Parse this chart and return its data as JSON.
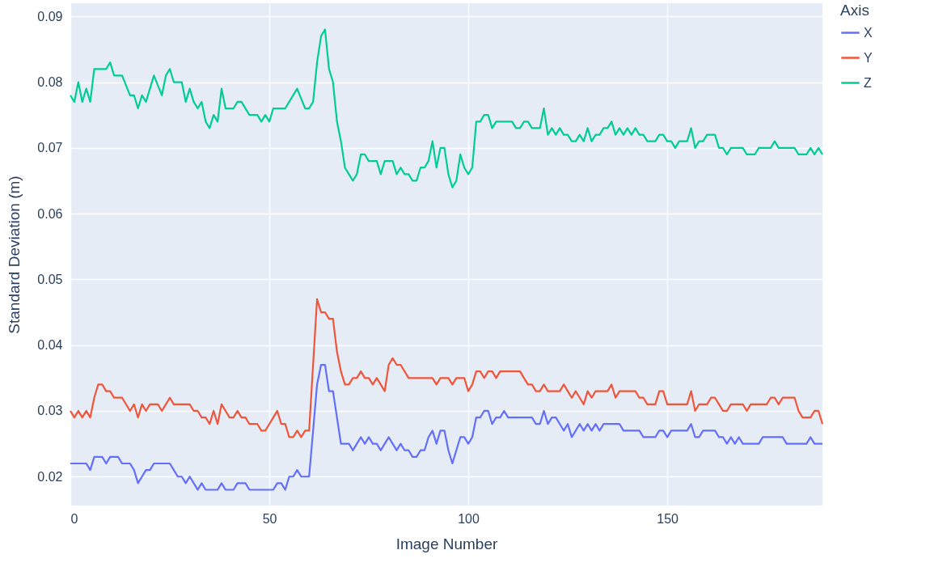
{
  "chart_data": {
    "type": "line",
    "xlabel": "Image Number",
    "ylabel": "Standard Deviation (m)",
    "legend_title": "Axis",
    "legend": "top right",
    "grid": true,
    "xlim": [
      0,
      189
    ],
    "xticks": [
      0,
      50,
      100,
      150
    ],
    "ylim": [
      0.0156,
      0.092
    ],
    "yticks": [
      0.02,
      0.03,
      0.04,
      0.05,
      0.06,
      0.07,
      0.08,
      0.09
    ],
    "series": [
      {
        "name": "X",
        "color": "#636efa",
        "x": [
          0,
          4,
          5,
          6,
          8,
          9,
          10,
          12,
          13,
          15,
          16,
          17,
          18,
          19,
          20,
          21,
          25,
          26,
          27,
          28,
          29,
          30,
          31,
          32,
          33,
          34,
          37,
          38,
          39,
          41,
          42,
          44,
          45,
          51,
          52,
          53,
          54,
          55,
          56,
          57,
          58,
          60,
          62,
          63,
          64,
          65,
          66,
          67,
          68,
          70,
          71,
          72,
          73,
          74,
          75,
          76,
          77,
          78,
          79,
          80,
          81,
          82,
          83,
          84,
          85,
          86,
          87,
          88,
          89,
          90,
          91,
          92,
          93,
          94,
          95,
          96,
          97,
          98,
          99,
          100,
          101,
          102,
          103,
          104,
          105,
          106,
          107,
          108,
          109,
          110,
          116,
          117,
          118,
          119,
          120,
          121,
          122,
          123,
          124,
          125,
          126,
          127,
          128,
          129,
          130,
          131,
          132,
          133,
          134,
          138,
          139,
          143,
          144,
          147,
          148,
          149,
          150,
          151,
          155,
          156,
          157,
          158,
          159,
          162,
          163,
          164,
          165,
          166,
          167,
          168,
          169,
          173,
          174,
          179,
          180,
          185,
          186,
          187,
          189
        ],
        "values": [
          0.022,
          0.022,
          0.021,
          0.023,
          0.023,
          0.022,
          0.023,
          0.023,
          0.022,
          0.022,
          0.021,
          0.019,
          0.02,
          0.021,
          0.021,
          0.022,
          0.022,
          0.021,
          0.02,
          0.02,
          0.019,
          0.02,
          0.019,
          0.018,
          0.019,
          0.018,
          0.018,
          0.019,
          0.018,
          0.018,
          0.019,
          0.019,
          0.018,
          0.018,
          0.019,
          0.019,
          0.018,
          0.02,
          0.02,
          0.021,
          0.02,
          0.02,
          0.034,
          0.037,
          0.037,
          0.033,
          0.033,
          0.029,
          0.025,
          0.025,
          0.024,
          0.025,
          0.026,
          0.025,
          0.026,
          0.025,
          0.025,
          0.024,
          0.025,
          0.026,
          0.025,
          0.024,
          0.025,
          0.024,
          0.024,
          0.023,
          0.023,
          0.024,
          0.024,
          0.026,
          0.027,
          0.025,
          0.027,
          0.027,
          0.024,
          0.022,
          0.024,
          0.026,
          0.026,
          0.025,
          0.026,
          0.029,
          0.029,
          0.03,
          0.03,
          0.028,
          0.029,
          0.029,
          0.03,
          0.029,
          0.029,
          0.028,
          0.028,
          0.03,
          0.028,
          0.029,
          0.029,
          0.028,
          0.027,
          0.028,
          0.026,
          0.027,
          0.028,
          0.027,
          0.028,
          0.027,
          0.028,
          0.027,
          0.028,
          0.028,
          0.027,
          0.027,
          0.026,
          0.026,
          0.027,
          0.027,
          0.026,
          0.027,
          0.027,
          0.028,
          0.026,
          0.026,
          0.027,
          0.027,
          0.026,
          0.026,
          0.025,
          0.026,
          0.025,
          0.026,
          0.025,
          0.025,
          0.026,
          0.026,
          0.025,
          0.025,
          0.026,
          0.025,
          0.025
        ]
      },
      {
        "name": "Y",
        "color": "#ef553b",
        "x": [
          0,
          1,
          2,
          3,
          4,
          5,
          6,
          7,
          8,
          9,
          10,
          11,
          13,
          15,
          16,
          17,
          18,
          19,
          20,
          22,
          23,
          24,
          25,
          26,
          30,
          31,
          32,
          33,
          34,
          35,
          36,
          37,
          38,
          39,
          40,
          41,
          42,
          43,
          44,
          45,
          47,
          48,
          49,
          50,
          51,
          52,
          53,
          54,
          55,
          56,
          57,
          58,
          59,
          60,
          62,
          63,
          64,
          65,
          66,
          67,
          68,
          69,
          70,
          71,
          72,
          73,
          74,
          75,
          76,
          77,
          78,
          79,
          80,
          81,
          82,
          83,
          85,
          91,
          92,
          93,
          95,
          96,
          97,
          99,
          100,
          101,
          102,
          103,
          104,
          105,
          106,
          107,
          108,
          113,
          114,
          115,
          116,
          117,
          118,
          119,
          120,
          123,
          124,
          125,
          126,
          127,
          128,
          129,
          130,
          131,
          132,
          135,
          136,
          137,
          138,
          142,
          143,
          144,
          145,
          147,
          148,
          149,
          150,
          155,
          156,
          157,
          158,
          160,
          161,
          162,
          163,
          164,
          165,
          166,
          169,
          170,
          171,
          175,
          176,
          177,
          178,
          179,
          182,
          183,
          184,
          186,
          187,
          188,
          189
        ],
        "values": [
          0.03,
          0.029,
          0.03,
          0.029,
          0.03,
          0.029,
          0.032,
          0.034,
          0.034,
          0.033,
          0.033,
          0.032,
          0.032,
          0.03,
          0.031,
          0.029,
          0.031,
          0.03,
          0.031,
          0.031,
          0.03,
          0.031,
          0.032,
          0.031,
          0.031,
          0.03,
          0.03,
          0.029,
          0.029,
          0.028,
          0.03,
          0.028,
          0.031,
          0.03,
          0.029,
          0.029,
          0.03,
          0.029,
          0.029,
          0.028,
          0.028,
          0.027,
          0.027,
          0.028,
          0.029,
          0.03,
          0.028,
          0.028,
          0.026,
          0.026,
          0.027,
          0.026,
          0.027,
          0.027,
          0.047,
          0.045,
          0.045,
          0.044,
          0.044,
          0.039,
          0.036,
          0.034,
          0.034,
          0.035,
          0.035,
          0.036,
          0.035,
          0.035,
          0.034,
          0.035,
          0.034,
          0.033,
          0.037,
          0.038,
          0.037,
          0.037,
          0.035,
          0.035,
          0.034,
          0.035,
          0.035,
          0.034,
          0.035,
          0.035,
          0.033,
          0.034,
          0.036,
          0.036,
          0.035,
          0.036,
          0.036,
          0.035,
          0.036,
          0.036,
          0.035,
          0.034,
          0.034,
          0.033,
          0.033,
          0.034,
          0.033,
          0.033,
          0.034,
          0.033,
          0.032,
          0.033,
          0.032,
          0.031,
          0.033,
          0.032,
          0.033,
          0.033,
          0.034,
          0.032,
          0.033,
          0.033,
          0.032,
          0.032,
          0.031,
          0.031,
          0.033,
          0.033,
          0.031,
          0.031,
          0.033,
          0.03,
          0.031,
          0.031,
          0.032,
          0.032,
          0.031,
          0.03,
          0.03,
          0.031,
          0.031,
          0.03,
          0.031,
          0.031,
          0.032,
          0.032,
          0.031,
          0.032,
          0.032,
          0.03,
          0.029,
          0.029,
          0.03,
          0.03,
          0.028
        ]
      },
      {
        "name": "Z",
        "color": "#00cc96",
        "x": [
          0,
          1,
          2,
          3,
          4,
          5,
          6,
          9,
          10,
          11,
          13,
          15,
          16,
          17,
          18,
          19,
          21,
          23,
          24,
          25,
          26,
          28,
          29,
          30,
          31,
          32,
          33,
          34,
          35,
          36,
          37,
          38,
          39,
          41,
          42,
          43,
          45,
          47,
          48,
          49,
          50,
          51,
          54,
          57,
          59,
          60,
          61,
          62,
          63,
          64,
          65,
          66,
          67,
          68,
          69,
          70,
          71,
          72,
          73,
          74,
          75,
          77,
          78,
          79,
          81,
          82,
          83,
          84,
          85,
          86,
          87,
          88,
          89,
          90,
          91,
          92,
          93,
          94,
          95,
          96,
          97,
          98,
          99,
          100,
          101,
          102,
          103,
          104,
          105,
          106,
          107,
          111,
          112,
          113,
          114,
          115,
          116,
          118,
          119,
          120,
          121,
          122,
          123,
          124,
          125,
          126,
          127,
          128,
          129,
          130,
          131,
          132,
          133,
          134,
          135,
          136,
          137,
          138,
          139,
          140,
          141,
          142,
          143,
          144,
          145,
          147,
          148,
          149,
          150,
          151,
          152,
          153,
          155,
          156,
          157,
          158,
          159,
          160,
          162,
          163,
          164,
          165,
          166,
          169,
          170,
          172,
          173,
          176,
          177,
          178,
          182,
          183,
          185,
          186,
          187,
          188,
          189
        ],
        "values": [
          0.078,
          0.077,
          0.08,
          0.077,
          0.079,
          0.077,
          0.082,
          0.082,
          0.083,
          0.081,
          0.081,
          0.078,
          0.078,
          0.076,
          0.078,
          0.077,
          0.081,
          0.078,
          0.081,
          0.082,
          0.08,
          0.08,
          0.077,
          0.079,
          0.077,
          0.076,
          0.077,
          0.074,
          0.073,
          0.075,
          0.074,
          0.079,
          0.076,
          0.076,
          0.077,
          0.077,
          0.075,
          0.075,
          0.074,
          0.075,
          0.074,
          0.076,
          0.076,
          0.079,
          0.076,
          0.076,
          0.077,
          0.083,
          0.087,
          0.088,
          0.082,
          0.08,
          0.074,
          0.071,
          0.067,
          0.066,
          0.065,
          0.066,
          0.069,
          0.069,
          0.068,
          0.068,
          0.066,
          0.068,
          0.068,
          0.066,
          0.067,
          0.066,
          0.066,
          0.065,
          0.065,
          0.067,
          0.067,
          0.068,
          0.071,
          0.067,
          0.07,
          0.07,
          0.066,
          0.064,
          0.065,
          0.069,
          0.067,
          0.066,
          0.067,
          0.074,
          0.074,
          0.075,
          0.075,
          0.073,
          0.074,
          0.074,
          0.073,
          0.073,
          0.074,
          0.074,
          0.073,
          0.073,
          0.076,
          0.072,
          0.073,
          0.072,
          0.073,
          0.072,
          0.072,
          0.071,
          0.071,
          0.072,
          0.071,
          0.073,
          0.071,
          0.072,
          0.072,
          0.073,
          0.073,
          0.074,
          0.072,
          0.073,
          0.072,
          0.073,
          0.072,
          0.073,
          0.072,
          0.072,
          0.071,
          0.071,
          0.072,
          0.072,
          0.071,
          0.071,
          0.07,
          0.071,
          0.071,
          0.073,
          0.07,
          0.071,
          0.071,
          0.072,
          0.072,
          0.07,
          0.07,
          0.069,
          0.07,
          0.07,
          0.069,
          0.069,
          0.07,
          0.07,
          0.071,
          0.07,
          0.07,
          0.069,
          0.069,
          0.07,
          0.069,
          0.07,
          0.069
        ]
      }
    ]
  }
}
